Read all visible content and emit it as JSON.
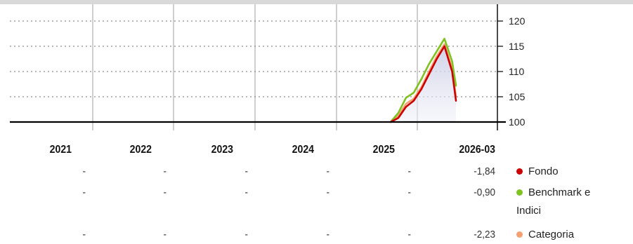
{
  "chart_data": {
    "type": "line",
    "ylim": [
      100,
      120
    ],
    "y_ticks": [
      "120",
      "115",
      "110",
      "105",
      "100"
    ],
    "baseline": 100,
    "grid": "dotted horizontal",
    "x_periods": [
      "2021",
      "2022",
      "2023",
      "2024",
      "2025",
      "2026-03"
    ],
    "series": [
      {
        "name": "Fondo",
        "color": "#cc0000",
        "points": [
          [
            0,
            100
          ],
          [
            0.1,
            100.8
          ],
          [
            0.2,
            103
          ],
          [
            0.3,
            104.2
          ],
          [
            0.4,
            106.5
          ],
          [
            0.5,
            109.5
          ],
          [
            0.6,
            112.5
          ],
          [
            0.7,
            115
          ],
          [
            0.8,
            110
          ],
          [
            0.85,
            104.2
          ]
        ]
      },
      {
        "name": "Benchmark e Indici",
        "color": "#7ec31f",
        "points": [
          [
            0,
            100
          ],
          [
            0.1,
            101.8
          ],
          [
            0.2,
            104.8
          ],
          [
            0.3,
            105.8
          ],
          [
            0.4,
            108.5
          ],
          [
            0.5,
            111.5
          ],
          [
            0.6,
            114
          ],
          [
            0.7,
            116.5
          ],
          [
            0.8,
            112
          ],
          [
            0.85,
            107.2
          ]
        ]
      },
      {
        "name": "Categoria",
        "color": "#f4a070",
        "points": [
          [
            0,
            100
          ],
          [
            0.1,
            101.2
          ],
          [
            0.2,
            103.6
          ],
          [
            0.3,
            104.6
          ],
          [
            0.4,
            106.9
          ],
          [
            0.5,
            110
          ],
          [
            0.6,
            113
          ],
          [
            0.7,
            115.4
          ],
          [
            0.8,
            110.6
          ],
          [
            0.85,
            105
          ]
        ]
      }
    ]
  },
  "table": {
    "columns": [
      "2021",
      "2022",
      "2023",
      "2024",
      "2025",
      "2026-03"
    ],
    "rows": [
      {
        "label": "Fondo",
        "color": "#cc0000",
        "values": [
          "-",
          "-",
          "-",
          "-",
          "-",
          "-1,84"
        ]
      },
      {
        "label": "Benchmark e Indici",
        "color": "#7ec31f",
        "values": [
          "-",
          "-",
          "-",
          "-",
          "-",
          "-0,90"
        ]
      },
      {
        "label": "Categoria",
        "color": "#f4a070",
        "values": [
          "-",
          "-",
          "-",
          "-",
          "-",
          "-2,23"
        ]
      }
    ]
  }
}
